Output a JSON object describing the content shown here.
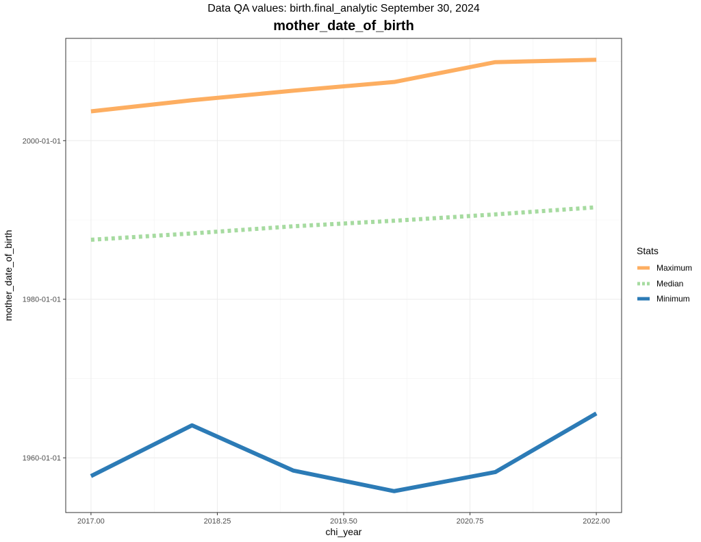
{
  "header": {
    "subtitle": "Data QA values: birth.final_analytic September 30, 2024",
    "title": "mother_date_of_birth"
  },
  "chart_data": {
    "type": "line",
    "subtitle": "Data QA values: birth.final_analytic September 30, 2024",
    "title": "mother_date_of_birth",
    "xlabel": "chi_year",
    "ylabel": "mother_date_of_birth",
    "x": [
      2017,
      2018,
      2019,
      2020,
      2021,
      2022
    ],
    "x_ticks": [
      "2017.00",
      "2018.25",
      "2019.50",
      "2020.75",
      "2022.00"
    ],
    "x_tick_values": [
      2017,
      2018.25,
      2019.5,
      2020.75,
      2022
    ],
    "xlim": [
      2016.75,
      2022.25
    ],
    "y_ticks": [
      "1960-01-01",
      "1980-01-01",
      "2000-01-01"
    ],
    "y_tick_values": [
      1960,
      1980,
      2000
    ],
    "ylim": [
      1953.1,
      2012.9
    ],
    "grid": true,
    "legend": {
      "title": "Stats",
      "position": "right"
    },
    "series": [
      {
        "name": "Maximum",
        "color": "#FDAE61",
        "dash": "solid",
        "values": [
          2003.7,
          2005.1,
          2006.3,
          2007.4,
          2009.9,
          2010.2
        ]
      },
      {
        "name": "Median",
        "color": "#A6DBA0",
        "dash": "dotted",
        "values": [
          1987.5,
          1988.3,
          1989.2,
          1989.9,
          1990.7,
          1991.6
        ]
      },
      {
        "name": "Minimum",
        "color": "#2C7BB6",
        "dash": "solid",
        "values": [
          1957.7,
          1964.1,
          1958.4,
          1955.8,
          1958.2,
          1965.6
        ]
      }
    ]
  }
}
